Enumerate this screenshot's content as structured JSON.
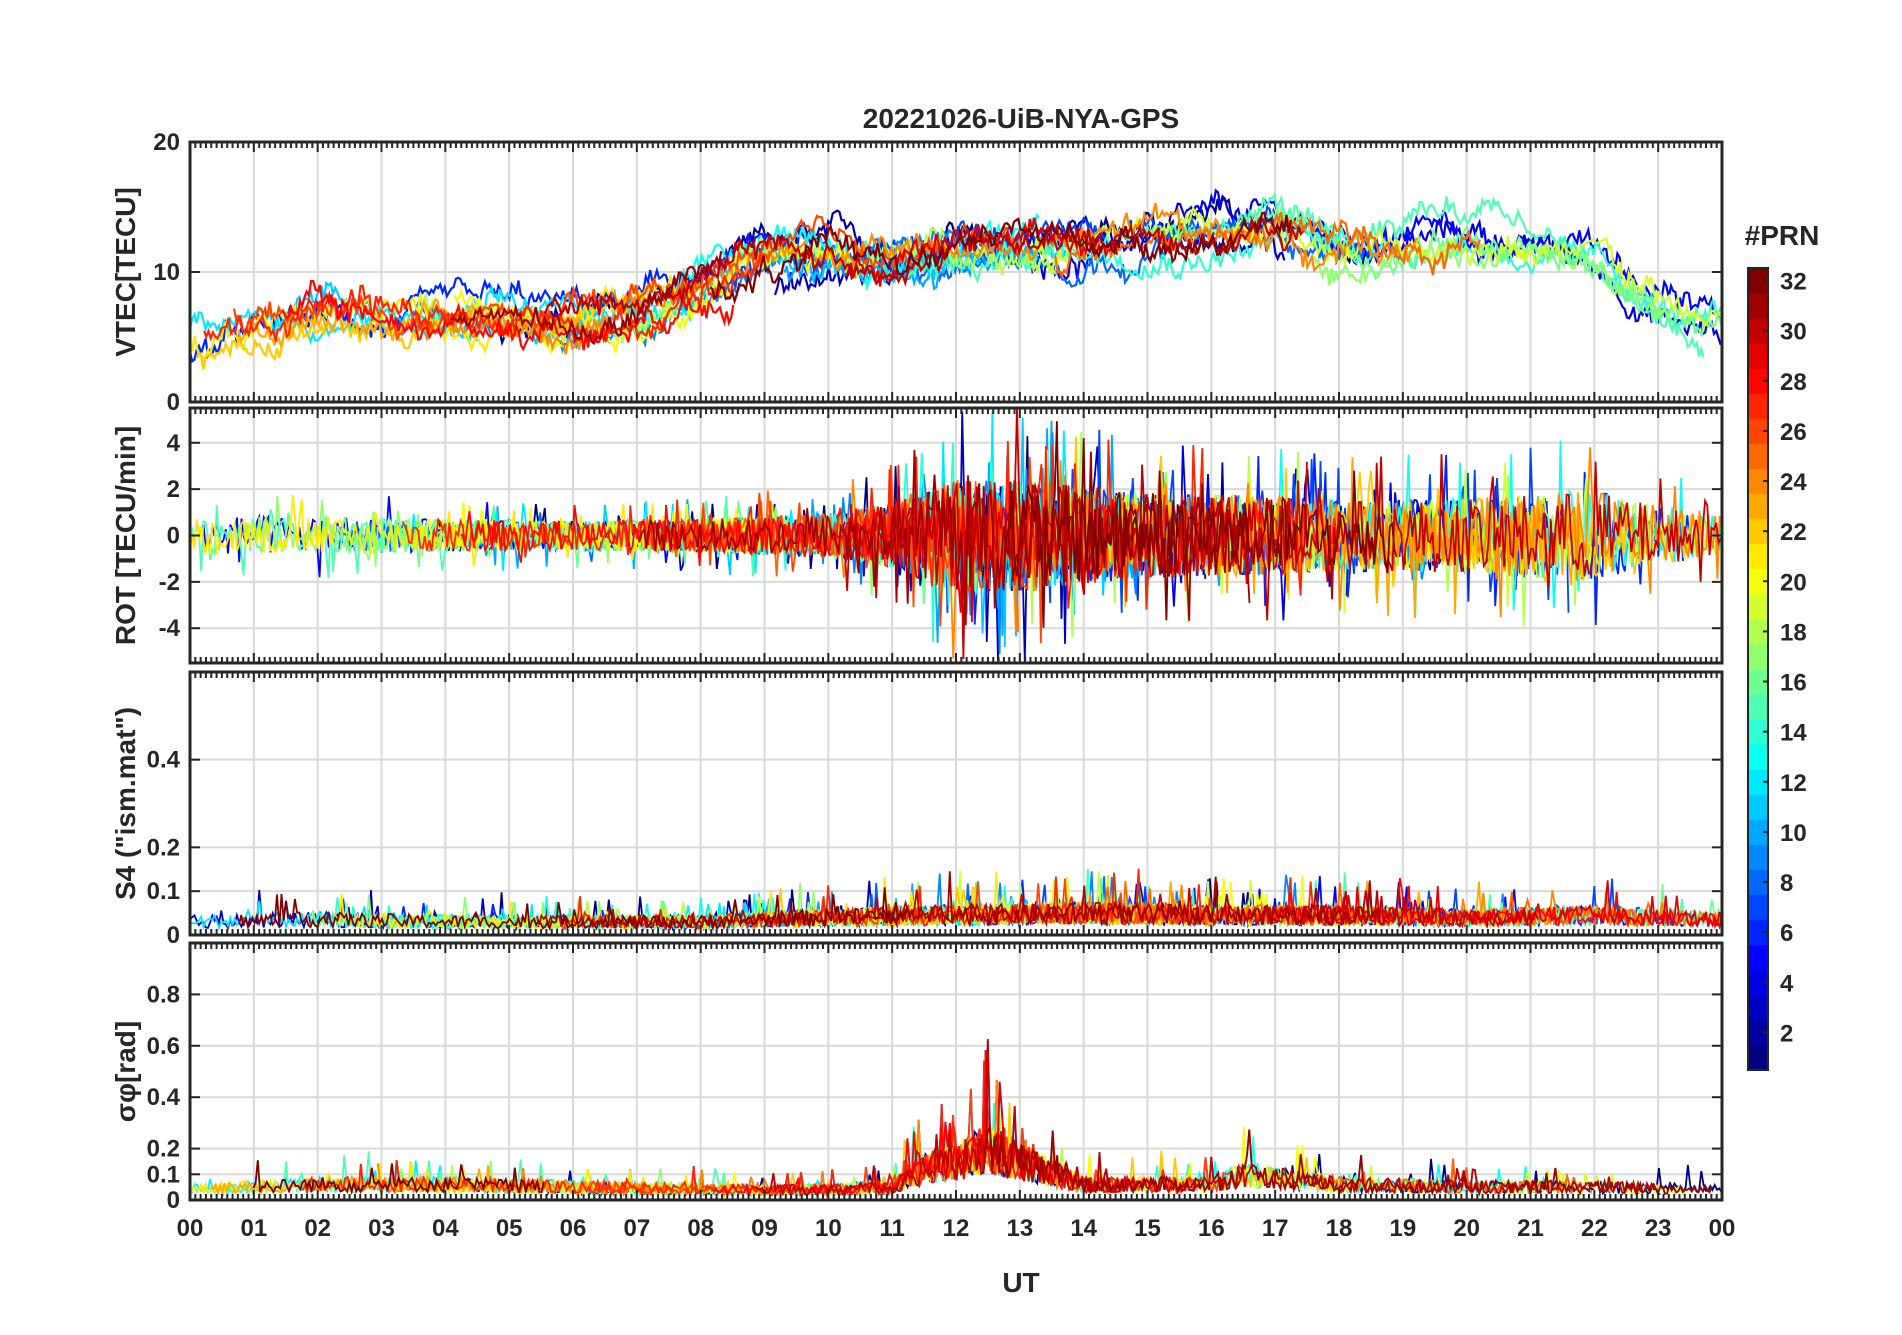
{
  "chart_data": {
    "type": "line",
    "title": "20221026-UiB-NYA-GPS",
    "xlabel": "UT",
    "x_ticks": [
      "00",
      "01",
      "02",
      "03",
      "04",
      "05",
      "06",
      "07",
      "08",
      "09",
      "10",
      "11",
      "12",
      "13",
      "14",
      "15",
      "16",
      "17",
      "18",
      "19",
      "20",
      "21",
      "22",
      "23",
      "00"
    ],
    "xlim": [
      0,
      24
    ],
    "grid": true,
    "colorbar": {
      "title": "#PRN",
      "range": [
        1,
        32
      ],
      "ticks": [
        "2",
        "4",
        "6",
        "8",
        "10",
        "12",
        "14",
        "16",
        "18",
        "20",
        "22",
        "24",
        "26",
        "28",
        "30",
        "32"
      ],
      "colormap": "jet",
      "placement": "right"
    },
    "panels": [
      {
        "ylabel": "VTEC[TECU]",
        "ylim": [
          0,
          20
        ],
        "y_ticks": [
          "0",
          "10",
          "20"
        ],
        "series_note": "one line per PRN 1-32, colored by PRN",
        "approx_envelope": {
          "x": [
            0,
            2,
            4,
            6,
            7,
            8,
            9,
            10,
            11,
            12,
            13,
            14,
            15,
            16,
            17,
            18,
            19,
            20,
            21,
            22,
            23,
            24
          ],
          "y_mean": [
            5,
            6,
            6,
            6,
            7,
            9,
            11,
            11,
            11,
            12,
            12,
            12,
            13,
            13,
            13,
            12,
            12,
            13,
            12,
            10,
            7,
            5
          ]
        }
      },
      {
        "ylabel": "ROT [TECU/min]",
        "ylim": [
          -5.5,
          5.5
        ],
        "y_ticks": [
          "-4",
          "-2",
          "0",
          "2",
          "4"
        ],
        "approx_amplitude": {
          "x": [
            0,
            2,
            4,
            6,
            8,
            10,
            11,
            12,
            13,
            14,
            15,
            16,
            17,
            18,
            20,
            21,
            22,
            23,
            24
          ],
          "amp": [
            1.2,
            1.2,
            1.0,
            0.9,
            1.0,
            1.4,
            2.0,
            3.5,
            3.5,
            3.0,
            2.6,
            2.6,
            2.4,
            2.2,
            2.3,
            2.6,
            2.8,
            1.8,
            1.2
          ]
        }
      },
      {
        "ylabel": "S4 (\"ism.mat\")",
        "ylim": [
          0,
          0.6
        ],
        "y_ticks": [
          "0",
          "0.1",
          "0.2",
          "0.4"
        ],
        "approx_level": {
          "x": [
            0,
            2,
            4,
            6,
            8,
            10,
            12,
            14,
            16,
            18,
            20,
            22,
            24
          ],
          "mean": [
            0.03,
            0.035,
            0.03,
            0.03,
            0.03,
            0.04,
            0.045,
            0.05,
            0.045,
            0.045,
            0.04,
            0.045,
            0.035
          ],
          "peak": 0.17
        }
      },
      {
        "ylabel": "σφ[rad]",
        "ylim": [
          0,
          1.0
        ],
        "y_ticks": [
          "0",
          "0.1",
          "0.2",
          "0.4",
          "0.6",
          "0.8"
        ],
        "approx_level": {
          "x": [
            0,
            2,
            4,
            6,
            8,
            10,
            11,
            11.5,
            12,
            12.5,
            13,
            14,
            16,
            16.5,
            18,
            20,
            22,
            24
          ],
          "mean": [
            0.04,
            0.06,
            0.06,
            0.05,
            0.04,
            0.04,
            0.05,
            0.12,
            0.15,
            0.2,
            0.15,
            0.06,
            0.06,
            0.1,
            0.06,
            0.05,
            0.05,
            0.04
          ],
          "peak": 0.62
        }
      }
    ]
  }
}
